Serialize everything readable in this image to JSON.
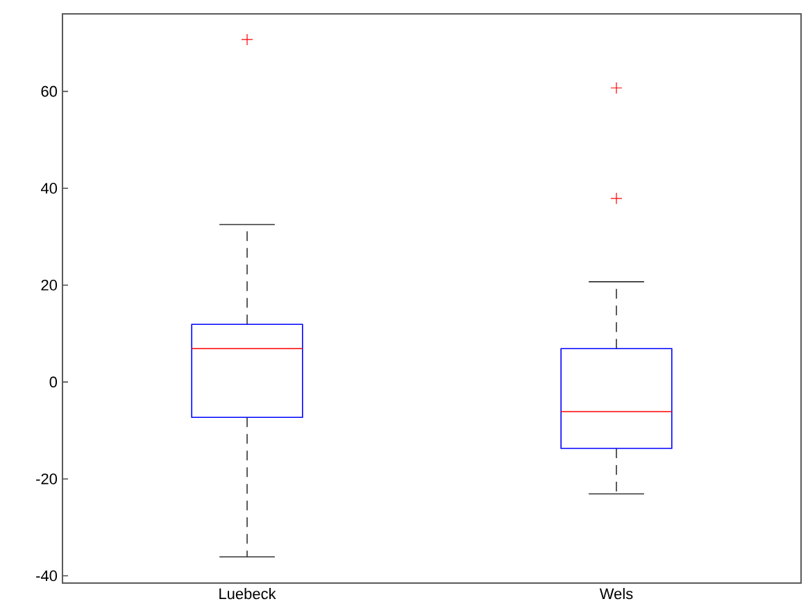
{
  "chart_data": {
    "type": "box",
    "categories": [
      "Luebeck",
      "Wels"
    ],
    "boxes": [
      {
        "low": -36.1,
        "q1": -7.3,
        "median": 6.9,
        "q3": 11.9,
        "high": 32.5,
        "outliers": [
          70.7
        ]
      },
      {
        "low": -23.1,
        "q1": -13.7,
        "median": -6.1,
        "q3": 6.9,
        "high": 20.7,
        "outliers": [
          60.7,
          37.9
        ]
      }
    ],
    "ylim": [
      -41.5,
      76
    ],
    "yticks": [
      -40,
      -20,
      0,
      20,
      40,
      60
    ],
    "grid": false
  }
}
